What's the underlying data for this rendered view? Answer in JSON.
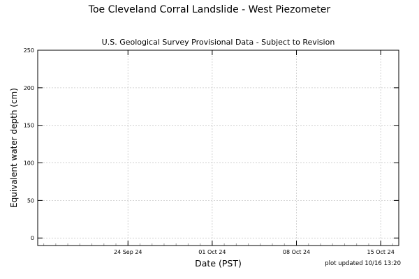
{
  "chart_data": {
    "type": "line",
    "title": "Toe Cleveland Corral Landslide - West Piezometer",
    "subtitle": "U.S. Geological Survey Provisional Data - Subject to Revision",
    "xlabel": "Date (PST)",
    "ylabel": "Equivalent water depth (cm)",
    "ylim": [
      -10,
      250
    ],
    "xlim": [
      "2024-09-16 12:00",
      "2024-10-16 12:00"
    ],
    "yticks": [
      0,
      50,
      100,
      150,
      200,
      250
    ],
    "xticks": [
      {
        "date": "2024-09-24",
        "label": "24 Sep 24"
      },
      {
        "date": "2024-10-01",
        "label": "01 Oct 24"
      },
      {
        "date": "2024-10-08",
        "label": "08 Oct 24"
      },
      {
        "date": "2024-10-15",
        "label": "15 Oct 24"
      }
    ],
    "grid": true,
    "series": [],
    "annotation": "plot updated 10/16 13:20"
  }
}
